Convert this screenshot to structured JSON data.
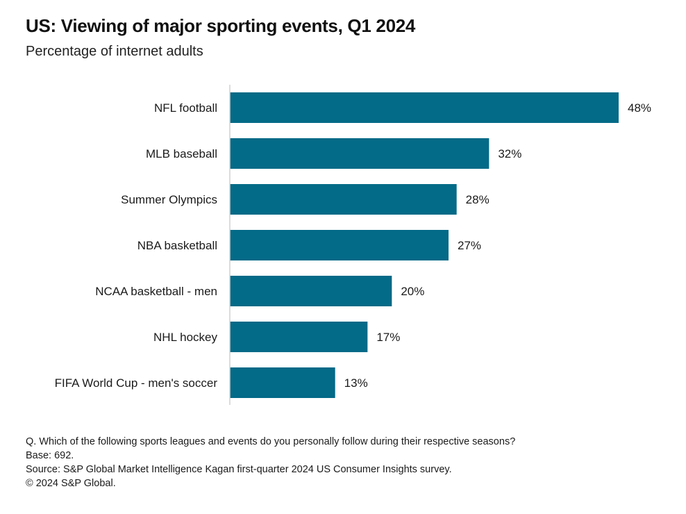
{
  "title": "US: Viewing of major sporting events, Q1 2024",
  "subtitle": "Percentage of internet adults",
  "footnotes": {
    "question": "Q. Which of the following sports leagues and events do you personally follow during their respective seasons?",
    "base": "Base: 692.",
    "source": "Source: S&P Global Market Intelligence Kagan first-quarter 2024 US Consumer Insights survey.",
    "copyright": "© 2024 S&P Global."
  },
  "colors": {
    "bar": "#036A87",
    "axis": "#d0d0d0"
  },
  "chart_data": {
    "type": "bar",
    "orientation": "horizontal",
    "title": "US: Viewing of major sporting events, Q1 2024",
    "subtitle": "Percentage of internet adults",
    "xlabel": "",
    "ylabel": "",
    "unit": "%",
    "xlim": [
      0,
      48
    ],
    "grid": false,
    "legend": "none",
    "categories": [
      "NFL football",
      "MLB baseball",
      "Summer Olympics",
      "NBA basketball",
      "NCAA basketball - men",
      "NHL hockey",
      "FIFA World Cup - men's soccer"
    ],
    "values": [
      48,
      32,
      28,
      27,
      20,
      17,
      13
    ],
    "value_labels": [
      "48%",
      "32%",
      "28%",
      "27%",
      "20%",
      "17%",
      "13%"
    ]
  }
}
